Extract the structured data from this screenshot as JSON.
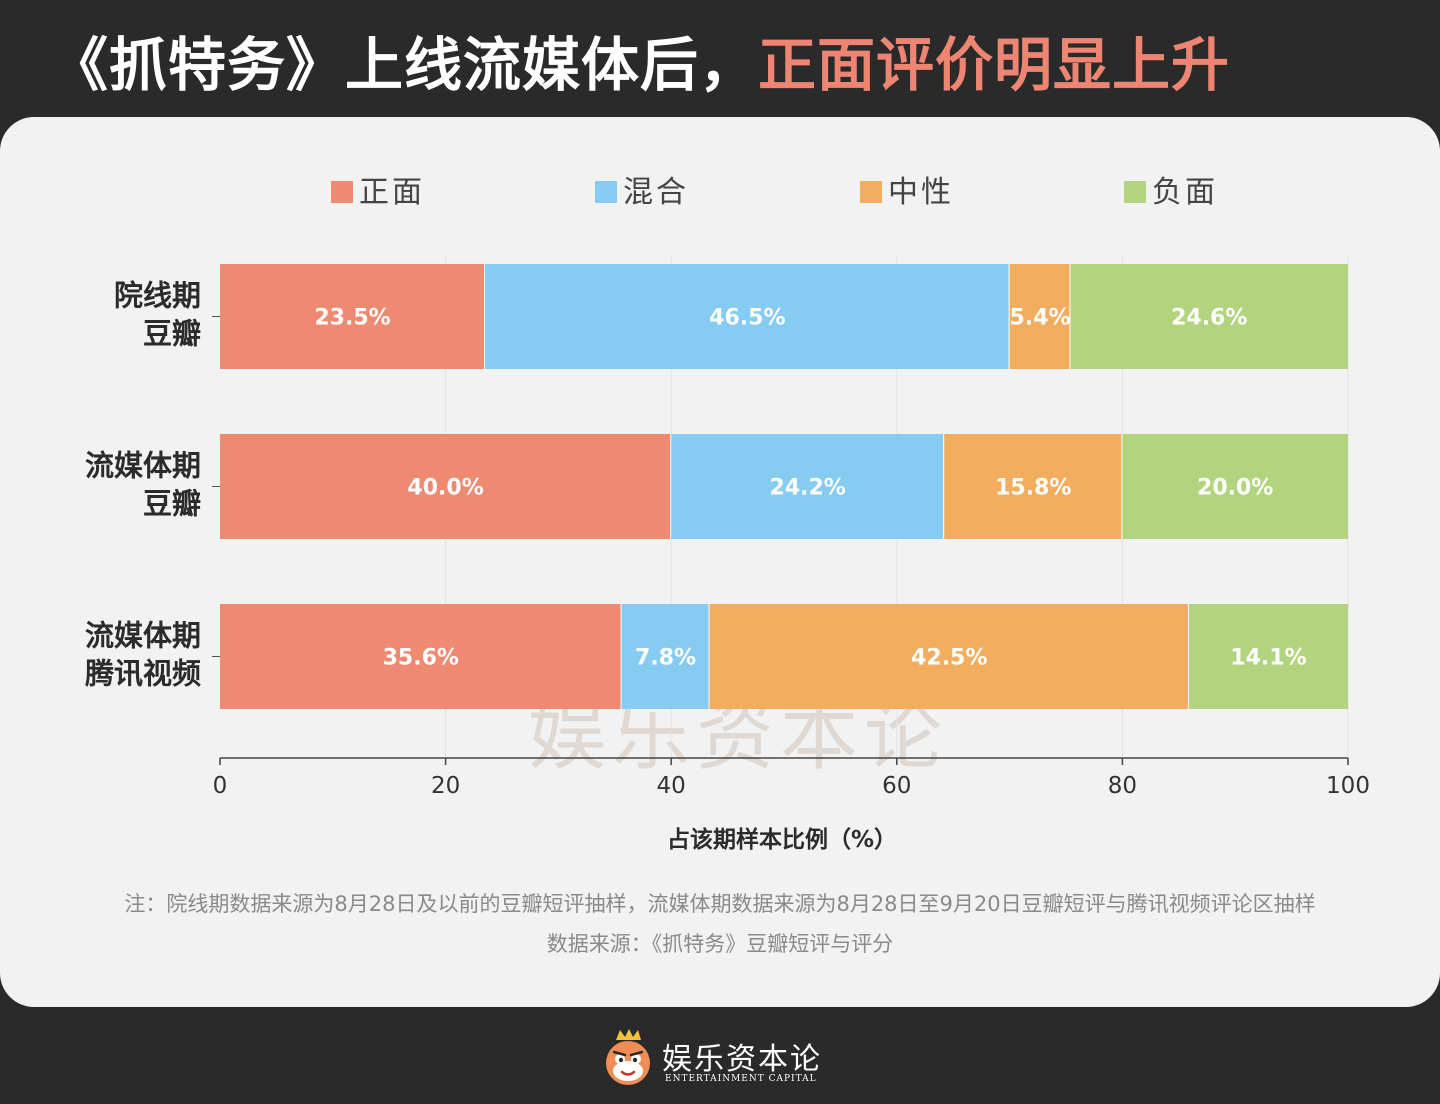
{
  "headline": {
    "prefix": "《抓特务》上线流媒体后，",
    "highlight": "正面评价明显上升"
  },
  "chart_data": {
    "type": "bar",
    "orientation": "horizontal",
    "stacked": true,
    "title": "",
    "xlabel": "占该期样本比例（%）",
    "ylabel": "",
    "xlim": [
      0,
      100
    ],
    "x_ticks": [
      "0",
      "20",
      "40",
      "60",
      "80",
      "100"
    ],
    "grid": true,
    "legend_position": "top",
    "categories": [
      [
        "院线期",
        "豆瓣"
      ],
      [
        "流媒体期",
        "豆瓣"
      ],
      [
        "流媒体期",
        "腾讯视频"
      ]
    ],
    "series": [
      {
        "name": "正面",
        "color": "#ee8a72",
        "values": [
          23.5,
          40.0,
          35.6
        ],
        "labels": [
          "23.5%",
          "40.0%",
          "35.6%"
        ]
      },
      {
        "name": "混合",
        "color": "#85cbf2",
        "values": [
          46.5,
          24.2,
          7.8
        ],
        "labels": [
          "46.5%",
          "24.2%",
          "7.8%"
        ]
      },
      {
        "name": "中性",
        "color": "#f2ad5e",
        "values": [
          5.4,
          15.8,
          42.5
        ],
        "labels": [
          "5.4%",
          "15.8%",
          "42.5%"
        ]
      },
      {
        "name": "负面",
        "color": "#b3d47f",
        "values": [
          24.6,
          20.0,
          14.1
        ],
        "labels": [
          "24.6%",
          "20.0%",
          "14.1%"
        ]
      }
    ]
  },
  "watermark": "娱乐资本论",
  "notes": {
    "line1": "注：院线期数据来源为8月28日及以前的豆瓣短评抽样，流媒体期数据来源为8月28日至9月20日豆瓣短评与腾讯视频评论区抽样",
    "line2": "数据来源：《抓特务》豆瓣短评与评分"
  },
  "brand": {
    "name": "娱乐资本论",
    "subtitle": "ENTERTAINMENT CAPITAL",
    "logo_icon": "cartoon-mascot-logo"
  }
}
